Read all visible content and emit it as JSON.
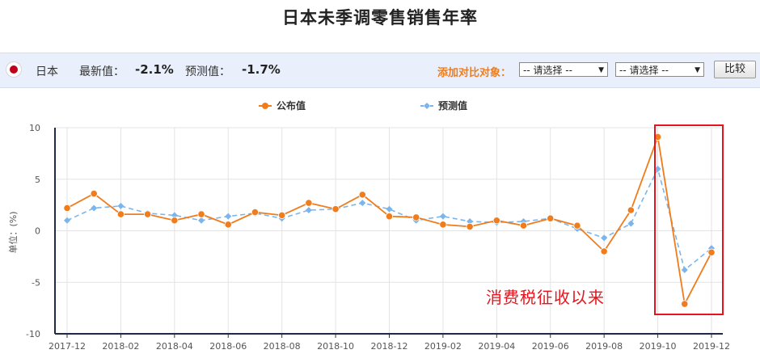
{
  "title": "日本未季调零售销售年率",
  "infobar": {
    "country": "日本",
    "latest_label": "最新值：",
    "latest_value": "-2.1%",
    "forecast_label": "预测值：",
    "forecast_value": "-1.7%",
    "compare_label": "添加对比对象：",
    "select1": "-- 请选择 --",
    "select2": "-- 请选择 --",
    "compare_button": "比较"
  },
  "annotation": "消费税征收以来",
  "colors": {
    "published": "#f07c1b",
    "forecast": "#7cb5ec",
    "highlight_box": "#e8141d",
    "flag": "#c0001a"
  },
  "chart_data": {
    "type": "line",
    "ylabel": "单位：(%)",
    "ylim": [
      -10,
      10
    ],
    "y_ticks": [
      10,
      5,
      0,
      -5,
      -10
    ],
    "x_tick_labels": [
      "2017-12",
      "2018-02",
      "2018-04",
      "2018-06",
      "2018-08",
      "2018-10",
      "2018-12",
      "2019-02",
      "2019-04",
      "2019-06",
      "2019-08",
      "2019-10",
      "2019-12"
    ],
    "x": [
      "2017-12",
      "2018-01",
      "2018-02",
      "2018-03",
      "2018-04",
      "2018-05",
      "2018-06",
      "2018-07",
      "2018-08",
      "2018-09",
      "2018-10",
      "2018-11",
      "2018-12",
      "2019-01",
      "2019-02",
      "2019-03",
      "2019-04",
      "2019-05",
      "2019-06",
      "2019-07",
      "2019-08",
      "2019-09",
      "2019-10",
      "2019-11",
      "2019-12"
    ],
    "legend_position": "top",
    "grid": true,
    "series": [
      {
        "name": "公布值",
        "style": "solid",
        "values": [
          2.2,
          3.6,
          1.6,
          1.6,
          1.0,
          1.6,
          0.6,
          1.8,
          1.5,
          2.7,
          2.1,
          3.5,
          1.4,
          1.3,
          0.6,
          0.4,
          1.0,
          0.5,
          1.2,
          0.5,
          -2.0,
          2.0,
          9.1,
          -7.1,
          -2.1
        ]
      },
      {
        "name": "预测值",
        "style": "dashed",
        "values": [
          1.0,
          2.2,
          2.4,
          1.7,
          1.5,
          1.0,
          1.4,
          1.7,
          1.2,
          2.0,
          2.1,
          2.7,
          2.1,
          1.0,
          1.4,
          0.9,
          0.8,
          0.9,
          1.2,
          0.2,
          -0.7,
          0.7,
          6.0,
          -3.8,
          -1.7
        ]
      }
    ]
  }
}
